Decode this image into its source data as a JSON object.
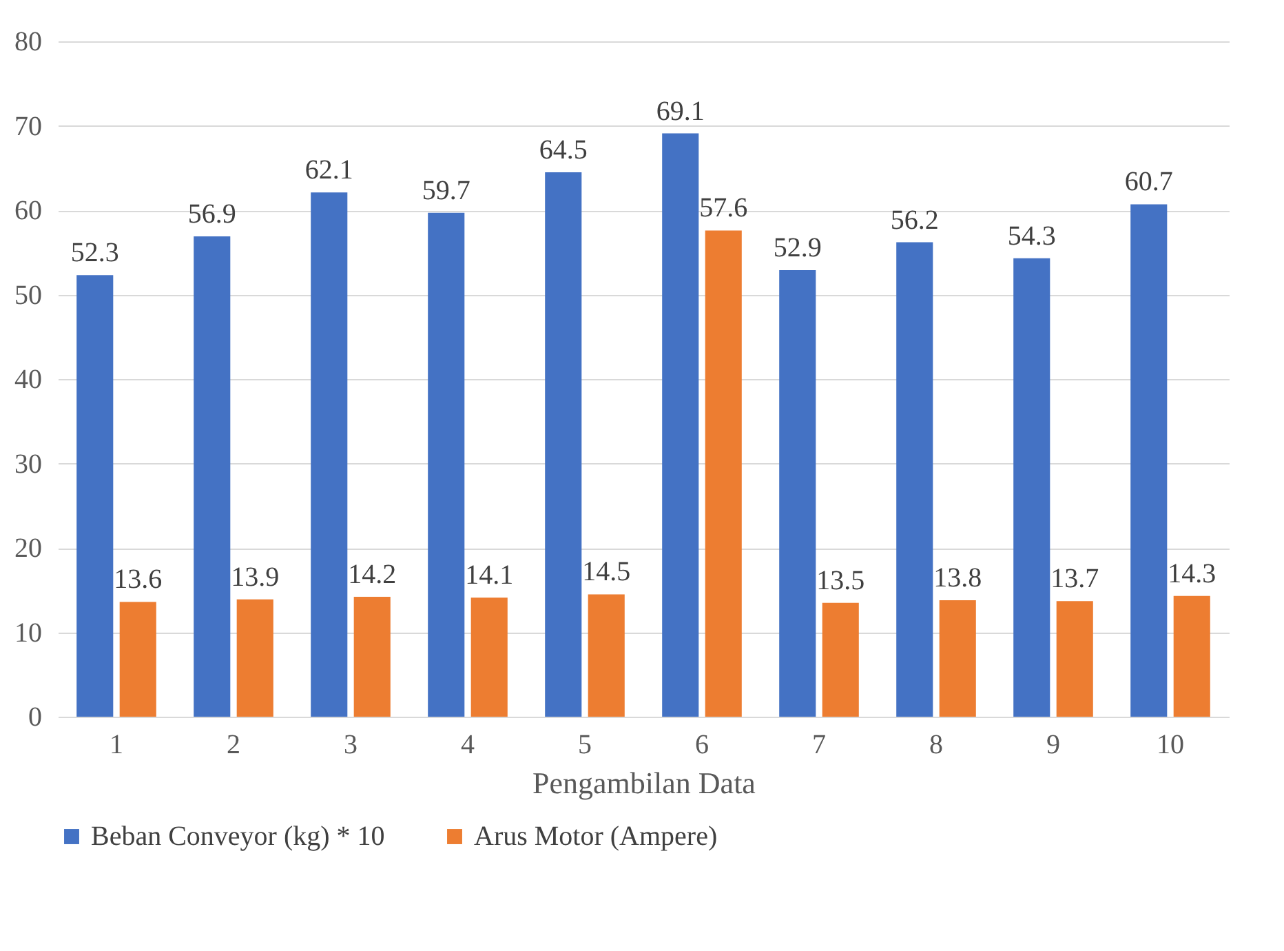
{
  "chart_data": {
    "type": "bar",
    "xlabel": "Pengambilan Data",
    "categories": [
      "1",
      "2",
      "3",
      "4",
      "5",
      "6",
      "7",
      "8",
      "9",
      "10"
    ],
    "series": [
      {
        "name": "Beban Conveyor (kg) * 10",
        "color": "#4472c4",
        "values": [
          52.3,
          56.9,
          62.1,
          59.7,
          64.5,
          69.1,
          52.9,
          56.2,
          54.3,
          60.7
        ]
      },
      {
        "name": "Arus Motor (Ampere)",
        "color": "#ed7d31",
        "values": [
          13.6,
          13.9,
          14.2,
          14.1,
          14.5,
          57.6,
          13.5,
          13.8,
          13.7,
          14.3
        ]
      }
    ],
    "ylim": [
      0,
      80
    ],
    "yticks": [
      0,
      10,
      20,
      30,
      40,
      50,
      60,
      70,
      80
    ],
    "grid": "y",
    "legend": "bottom",
    "data_labels": true
  }
}
